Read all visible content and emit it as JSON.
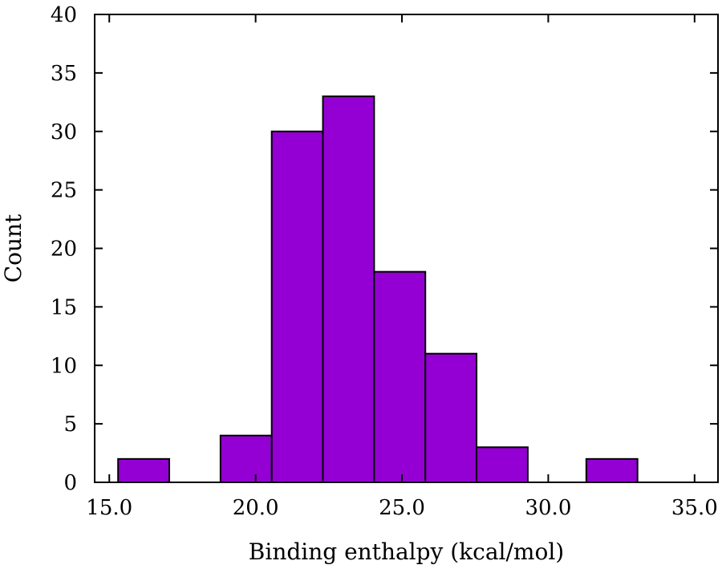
{
  "chart_data": {
    "type": "bar",
    "title": "",
    "xlabel": "Binding enthalpy (kcal/mol)",
    "ylabel": "Count",
    "xlim": [
      14.5,
      35.8
    ],
    "ylim": [
      0,
      40
    ],
    "x_ticks": [
      15.0,
      20.0,
      25.0,
      30.0,
      35.0
    ],
    "x_tick_labels": [
      "15.0",
      "20.0",
      "25.0",
      "30.0",
      "35.0"
    ],
    "y_ticks": [
      0,
      5,
      10,
      15,
      20,
      25,
      30,
      35,
      40
    ],
    "y_tick_labels": [
      "0",
      "5",
      "10",
      "15",
      "20",
      "25",
      "30",
      "35",
      "40"
    ],
    "bins": [
      {
        "x0": 15.3,
        "x1": 17.05,
        "count": 2
      },
      {
        "x0": 18.8,
        "x1": 20.55,
        "count": 4
      },
      {
        "x0": 20.55,
        "x1": 22.3,
        "count": 30
      },
      {
        "x0": 22.3,
        "x1": 24.05,
        "count": 33
      },
      {
        "x0": 24.05,
        "x1": 25.8,
        "count": 18
      },
      {
        "x0": 25.8,
        "x1": 27.55,
        "count": 11
      },
      {
        "x0": 27.55,
        "x1": 29.3,
        "count": 3
      },
      {
        "x0": 31.3,
        "x1": 33.05,
        "count": 2
      }
    ],
    "bar_color": "#9400d3",
    "grid": false,
    "legend": "none"
  }
}
